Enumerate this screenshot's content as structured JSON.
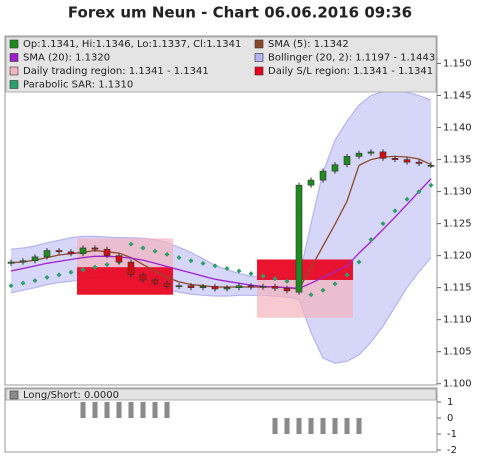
{
  "chart_data": [
    {
      "type": "candlestick",
      "title": "Forex um Neun - Chart 06.06.2016 09:36",
      "candle_legend": "Op:1.1341, Hi:1.1346, Lo:1.1337, Cl:1.1341",
      "up_color": "#1f8a1f",
      "down_color": "#d01010",
      "open": [
        1.1188,
        1.119,
        1.1192,
        1.1198,
        1.1208,
        1.1206,
        1.1203,
        1.1212,
        1.121,
        1.12,
        1.119,
        1.117,
        1.1162,
        1.1157,
        1.1152,
        1.1153,
        1.115,
        1.1152,
        1.1148,
        1.115,
        1.1153,
        1.1151,
        1.1152,
        1.1149,
        1.1143,
        1.131,
        1.1318,
        1.1332,
        1.1342,
        1.1355,
        1.136,
        1.1362,
        1.1352,
        1.135,
        1.1346,
        1.1341
      ],
      "high": [
        1.1194,
        1.1196,
        1.1202,
        1.1212,
        1.1212,
        1.121,
        1.1216,
        1.1216,
        1.1214,
        1.1204,
        1.1194,
        1.1174,
        1.1166,
        1.1161,
        1.1157,
        1.1157,
        1.1156,
        1.1156,
        1.1154,
        1.1157,
        1.1157,
        1.1156,
        1.1156,
        1.1153,
        1.1314,
        1.1322,
        1.1336,
        1.1346,
        1.1359,
        1.1364,
        1.1366,
        1.1366,
        1.1356,
        1.1354,
        1.135,
        1.1346
      ],
      "low": [
        1.1184,
        1.1186,
        1.1188,
        1.1194,
        1.1202,
        1.1199,
        1.1199,
        1.1206,
        1.1196,
        1.1186,
        1.1166,
        1.1158,
        1.1153,
        1.1148,
        1.1148,
        1.1146,
        1.1146,
        1.1144,
        1.1144,
        1.1146,
        1.1147,
        1.1147,
        1.1145,
        1.1141,
        1.1139,
        1.1306,
        1.1314,
        1.1328,
        1.1338,
        1.1351,
        1.1356,
        1.1348,
        1.1346,
        1.1342,
        1.134,
        1.1337
      ],
      "close": [
        1.119,
        1.1192,
        1.1198,
        1.1208,
        1.1206,
        1.1203,
        1.1212,
        1.121,
        1.12,
        1.119,
        1.117,
        1.1162,
        1.1157,
        1.1152,
        1.1153,
        1.115,
        1.1152,
        1.1148,
        1.115,
        1.1153,
        1.1151,
        1.1152,
        1.1149,
        1.1145,
        1.131,
        1.1318,
        1.1332,
        1.1342,
        1.1355,
        1.136,
        1.1362,
        1.1352,
        1.135,
        1.1346,
        1.1344,
        1.1341
      ],
      "series": [
        {
          "name": "SMA (5): 1.1342",
          "color": "#8b4a2a",
          "values": [
            1.1189,
            1.119,
            1.1193,
            1.1197,
            1.1201,
            1.1203,
            1.1205,
            1.1208,
            1.1206,
            1.1204,
            1.1197,
            1.1186,
            1.1176,
            1.1166,
            1.1159,
            1.1155,
            1.1153,
            1.1151,
            1.1151,
            1.1151,
            1.1151,
            1.1151,
            1.1151,
            1.115,
            1.1148,
            1.1181,
            1.1215,
            1.1249,
            1.1285,
            1.1341,
            1.135,
            1.1354,
            1.1355,
            1.1354,
            1.1351,
            1.1342
          ]
        },
        {
          "name": "SMA (20): 1.1320",
          "color": "#a020d0",
          "values": [
            1.1176,
            1.118,
            1.1184,
            1.1188,
            1.1191,
            1.1194,
            1.1197,
            1.1199,
            1.1199,
            1.1198,
            1.1196,
            1.1193,
            1.1188,
            1.1183,
            1.1178,
            1.1173,
            1.1168,
            1.1163,
            1.116,
            1.1157,
            1.1154,
            1.1152,
            1.1151,
            1.115,
            1.1149,
            1.1157,
            1.1166,
            1.1175,
            1.1184,
            1.1204,
            1.1222,
            1.1241,
            1.126,
            1.128,
            1.13,
            1.132
          ]
        },
        {
          "name": "Parabolic SAR: 1.1310",
          "color": "#2e9e6a",
          "marker": "diamond",
          "values": [
            1.1153,
            1.1157,
            1.1161,
            1.1166,
            1.117,
            1.1174,
            1.1178,
            1.1182,
            1.1186,
            1.119,
            1.1218,
            1.1212,
            1.1207,
            1.1202,
            1.1197,
            1.1192,
            1.1188,
            1.1184,
            1.118,
            1.1176,
            1.1172,
            1.1168,
            1.1164,
            1.116,
            1.1157,
            1.1139,
            1.1146,
            1.1156,
            1.117,
            1.119,
            1.1225,
            1.125,
            1.127,
            1.1288,
            1.13,
            1.131
          ]
        }
      ],
      "bands": [
        {
          "name": "Bollinger (20, 2): 1.1197 - 1.1443",
          "color": "#b4b4f2",
          "upper": [
            1.121,
            1.1212,
            1.1215,
            1.122,
            1.1224,
            1.1228,
            1.123,
            1.123,
            1.1229,
            1.1228,
            1.1228,
            1.1227,
            1.1225,
            1.122,
            1.1213,
            1.1205,
            1.1195,
            1.1185,
            1.1178,
            1.1172,
            1.1168,
            1.1166,
            1.1165,
            1.1164,
            1.1165,
            1.125,
            1.133,
            1.138,
            1.141,
            1.1435,
            1.145,
            1.1456,
            1.1458,
            1.1455,
            1.145,
            1.1443
          ],
          "lower": [
            1.1142,
            1.1146,
            1.115,
            1.1155,
            1.1158,
            1.116,
            1.1163,
            1.1165,
            1.1166,
            1.1166,
            1.1163,
            1.1158,
            1.1152,
            1.1147,
            1.1143,
            1.114,
            1.1138,
            1.1137,
            1.1137,
            1.1138,
            1.1138,
            1.1138,
            1.1137,
            1.1135,
            1.1132,
            1.108,
            1.104,
            1.1032,
            1.1035,
            1.1045,
            1.1065,
            1.109,
            1.112,
            1.115,
            1.1175,
            1.1197
          ]
        }
      ],
      "regions": [
        {
          "name": "Daily trading region: 1.1341 - 1.1341",
          "color": "#f4b4be",
          "spans": [
            {
              "start": 6,
              "end": 13,
              "low": 1.1139,
              "high": 1.1227
            },
            {
              "start": 21,
              "end": 28,
              "low": 1.1103,
              "high": 1.1194
            }
          ]
        },
        {
          "name": "Daily S/L region: 1.1341 - 1.1341",
          "color": "#e8001c",
          "spans": [
            {
              "start": 6,
              "end": 13,
              "low": 1.1139,
              "high": 1.1182
            },
            {
              "start": 21,
              "end": 28,
              "low": 1.1162,
              "high": 1.1194
            }
          ]
        }
      ],
      "ylim": [
        1.0998,
        1.1543
      ],
      "yticks": [
        {
          "value": 1.1,
          "label": "1.100"
        },
        {
          "value": 1.105,
          "label": "1.105"
        },
        {
          "value": 1.11,
          "label": "1.110"
        },
        {
          "value": 1.115,
          "label": "1.115"
        },
        {
          "value": 1.12,
          "label": "1.120"
        },
        {
          "value": 1.125,
          "label": "1.125"
        },
        {
          "value": 1.13,
          "label": "1.130"
        },
        {
          "value": 1.135,
          "label": "1.135"
        },
        {
          "value": 1.14,
          "label": "1.140"
        },
        {
          "value": 1.145,
          "label": "1.145"
        },
        {
          "value": 1.15,
          "label": "1.150"
        }
      ],
      "legend": "top"
    },
    {
      "type": "bar",
      "name": "Long/Short: 0.0000",
      "color": "#8a8a8a",
      "values": [
        0,
        0,
        0,
        0,
        0,
        0,
        1,
        1,
        1,
        1,
        1,
        1,
        1,
        1,
        0,
        0,
        0,
        0,
        0,
        0,
        0,
        0,
        -1,
        -1,
        -1,
        -1,
        -1,
        -1,
        -1,
        -1,
        0,
        0,
        0,
        0,
        0,
        0
      ],
      "ylim": [
        -2.125,
        1.875
      ],
      "yticks": [
        1,
        0,
        -1,
        -2
      ]
    }
  ]
}
